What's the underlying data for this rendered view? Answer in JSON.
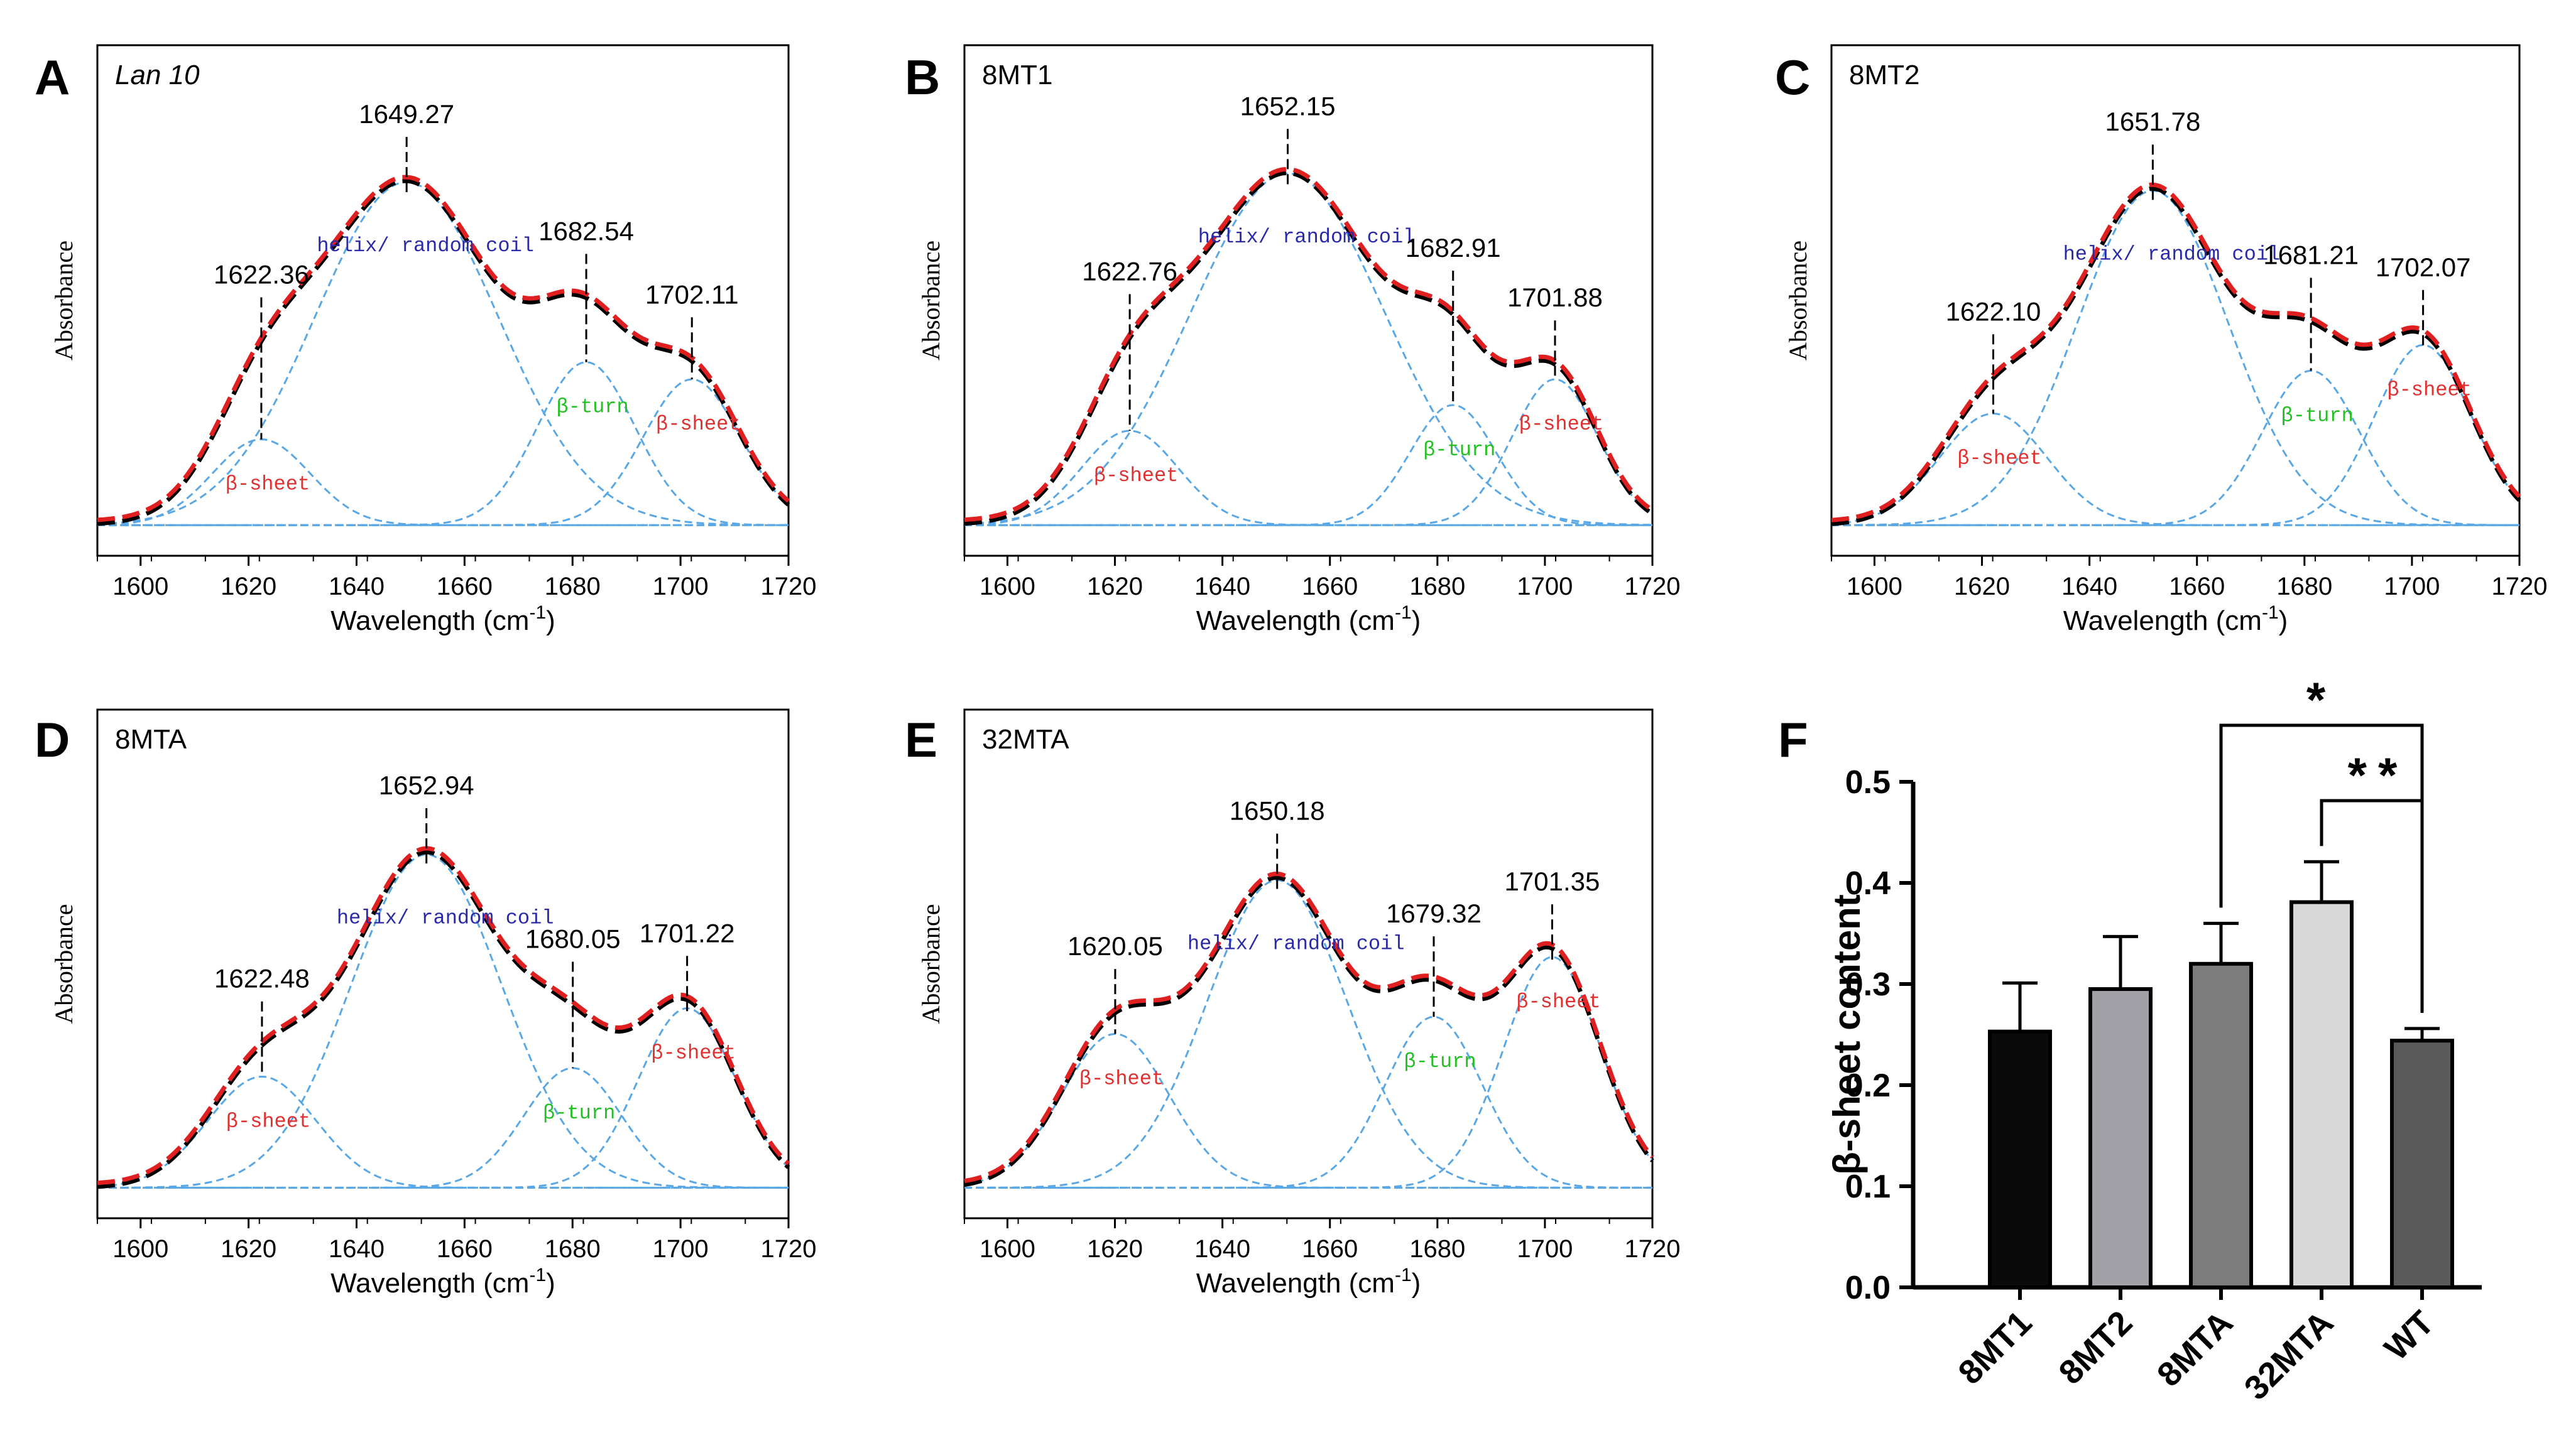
{
  "chart_data": [
    {
      "type": "line",
      "panel_letter": "A",
      "title": "Lan 10",
      "title_italic": true,
      "xlabel": "Wavelength (cm",
      "xlabel_sup": "-1",
      "xlabel_end": ")",
      "ylabel": "Absorbance",
      "xlim": [
        1592,
        1720
      ],
      "xticks": [
        1600,
        1620,
        1640,
        1660,
        1680,
        1700,
        1720
      ],
      "ylim": [
        0,
        1
      ],
      "baseline": 0.04,
      "components": [
        {
          "center": 1622.36,
          "amp": 0.2,
          "sigma": 9,
          "label": "β-sheet",
          "label_color": "#e03030"
        },
        {
          "center": 1649.27,
          "amp": 0.8,
          "sigma": 17,
          "label": "helix/ random coil",
          "label_color": "#2a2aa8"
        },
        {
          "center": 1682.54,
          "amp": 0.38,
          "sigma": 9,
          "label": "β-turn",
          "label_color": "#22c022"
        },
        {
          "center": 1702.11,
          "amp": 0.34,
          "sigma": 9,
          "label": "β-sheet",
          "label_color": "#e03030"
        }
      ],
      "peaks": [
        "1622.36",
        "1649.27",
        "1682.54",
        "1702.11"
      ],
      "series": [
        {
          "name": "",
          "color": "#000000"
        },
        {
          "name": "",
          "color": "#e02020"
        }
      ]
    },
    {
      "type": "line",
      "panel_letter": "B",
      "title": "8MT1",
      "title_italic": false,
      "xlabel": "Wavelength (cm",
      "xlabel_sup": "-1",
      "xlabel_end": ")",
      "ylabel": "Absorbance",
      "xlim": [
        1592,
        1720
      ],
      "xticks": [
        1600,
        1620,
        1640,
        1660,
        1680,
        1700,
        1720
      ],
      "ylim": [
        0,
        1
      ],
      "baseline": 0.04,
      "components": [
        {
          "center": 1622.76,
          "amp": 0.22,
          "sigma": 9,
          "label": "β-sheet",
          "label_color": "#e03030"
        },
        {
          "center": 1652.15,
          "amp": 0.82,
          "sigma": 18,
          "label": "helix/ random coil",
          "label_color": "#2a2aa8"
        },
        {
          "center": 1682.91,
          "amp": 0.28,
          "sigma": 8,
          "label": "β-turn",
          "label_color": "#22c022"
        },
        {
          "center": 1701.88,
          "amp": 0.34,
          "sigma": 8,
          "label": "β-sheet",
          "label_color": "#e03030"
        }
      ],
      "peaks": [
        "1622.76",
        "1652.15",
        "1682.91",
        "1701.88"
      ],
      "series": [
        {
          "name": "",
          "color": "#000000"
        },
        {
          "name": "",
          "color": "#e02020"
        }
      ]
    },
    {
      "type": "line",
      "panel_letter": "C",
      "title": "8MT2",
      "title_italic": false,
      "xlabel": "Wavelength (cm",
      "xlabel_sup": "-1",
      "xlabel_end": ")",
      "ylabel": "Absorbance",
      "xlim": [
        1592,
        1720
      ],
      "xticks": [
        1600,
        1620,
        1640,
        1660,
        1680,
        1700,
        1720
      ],
      "ylim": [
        0,
        1
      ],
      "baseline": 0.04,
      "components": [
        {
          "center": 1622.1,
          "amp": 0.26,
          "sigma": 10,
          "label": "β-sheet",
          "label_color": "#e03030"
        },
        {
          "center": 1651.78,
          "amp": 0.78,
          "sigma": 14,
          "label": "helix/ random coil",
          "label_color": "#2a2aa8"
        },
        {
          "center": 1681.21,
          "amp": 0.36,
          "sigma": 9,
          "label": "β-turn",
          "label_color": "#22c022"
        },
        {
          "center": 1702.07,
          "amp": 0.42,
          "sigma": 9,
          "label": "β-sheet",
          "label_color": "#e03030"
        }
      ],
      "peaks": [
        "1622.10",
        "1651.78",
        "1681.21",
        "1702.07"
      ],
      "series": [
        {
          "name": "",
          "color": "#000000"
        },
        {
          "name": "",
          "color": "#e02020"
        }
      ]
    },
    {
      "type": "line",
      "panel_letter": "D",
      "title": "8MTA",
      "title_italic": false,
      "xlabel": "Wavelength (cm",
      "xlabel_sup": "-1",
      "xlabel_end": ")",
      "ylabel": "Absorbance",
      "xlim": [
        1592,
        1720
      ],
      "xticks": [
        1600,
        1620,
        1640,
        1660,
        1680,
        1700,
        1720
      ],
      "ylim": [
        0,
        1
      ],
      "baseline": 0.04,
      "components": [
        {
          "center": 1622.48,
          "amp": 0.26,
          "sigma": 10,
          "label": "β-sheet",
          "label_color": "#e03030"
        },
        {
          "center": 1652.94,
          "amp": 0.78,
          "sigma": 14,
          "label": "helix/ random coil",
          "label_color": "#2a2aa8"
        },
        {
          "center": 1680.05,
          "amp": 0.28,
          "sigma": 9,
          "label": "β-turn",
          "label_color": "#22c022"
        },
        {
          "center": 1701.22,
          "amp": 0.42,
          "sigma": 9,
          "label": "β-sheet",
          "label_color": "#e03030"
        }
      ],
      "peaks": [
        "1622.48",
        "1652.94",
        "1680.05",
        "1701.22"
      ],
      "series": [
        {
          "name": "",
          "color": "#000000"
        },
        {
          "name": "",
          "color": "#e02020"
        }
      ]
    },
    {
      "type": "line",
      "panel_letter": "E",
      "title": "32MTA",
      "title_italic": false,
      "xlabel": "Wavelength (cm",
      "xlabel_sup": "-1",
      "xlabel_end": ")",
      "ylabel": "Absorbance",
      "xlim": [
        1592,
        1720
      ],
      "xticks": [
        1600,
        1620,
        1640,
        1660,
        1680,
        1700,
        1720
      ],
      "ylim": [
        0,
        1
      ],
      "baseline": 0.04,
      "components": [
        {
          "center": 1620.05,
          "amp": 0.36,
          "sigma": 10,
          "label": "β-sheet",
          "label_color": "#e03030"
        },
        {
          "center": 1650.18,
          "amp": 0.72,
          "sigma": 13,
          "label": "helix/ random coil",
          "label_color": "#2a2aa8"
        },
        {
          "center": 1679.32,
          "amp": 0.4,
          "sigma": 9,
          "label": "β-turn",
          "label_color": "#22c022"
        },
        {
          "center": 1701.35,
          "amp": 0.54,
          "sigma": 9,
          "label": "β-sheet",
          "label_color": "#e03030"
        }
      ],
      "peaks": [
        "1620.05",
        "1650.18",
        "1679.32",
        "1701.35"
      ],
      "series": [
        {
          "name": "",
          "color": "#000000"
        },
        {
          "name": "",
          "color": "#e02020"
        }
      ]
    },
    {
      "type": "bar",
      "panel_letter": "F",
      "categories": [
        "8MT1",
        "8MT2",
        "8MTA",
        "32MTA",
        "WT"
      ],
      "values": [
        0.253,
        0.295,
        0.32,
        0.381,
        0.244
      ],
      "errors": [
        0.048,
        0.052,
        0.04,
        0.04,
        0.012
      ],
      "bar_colors": [
        "#0a0a0a",
        "#a3a1a8",
        "#7c7c7c",
        "#d8d8d8",
        "#5a5a5a"
      ],
      "ylabel": "β-sheet content",
      "ylim": [
        0.0,
        0.5
      ],
      "yticks": [
        "0.0",
        "0.1",
        "0.2",
        "0.3",
        "0.4",
        "0.5"
      ],
      "significance": [
        {
          "from": "8MTA",
          "to": "WT",
          "label": "*"
        },
        {
          "from": "32MTA",
          "to": "WT",
          "label": "**"
        }
      ]
    }
  ]
}
